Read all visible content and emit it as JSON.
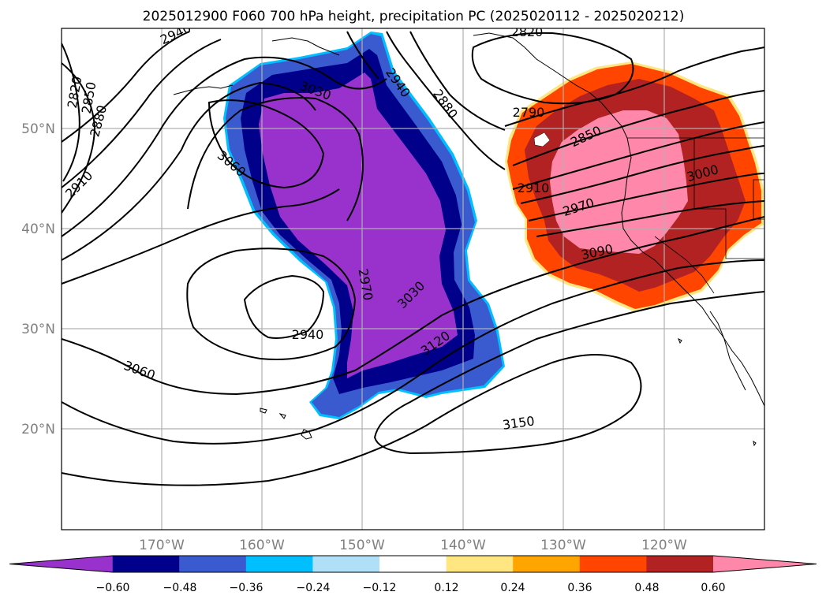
{
  "title": "2025012900 F060 700 hPa height, precipitation PC (2025020112 - 2025020212)",
  "lat_labels": [
    "50°N",
    "40°N",
    "30°N",
    "20°N"
  ],
  "lon_labels": [
    "170°W",
    "160°W",
    "150°W",
    "140°W",
    "130°W",
    "120°W"
  ],
  "colorbar": {
    "colors": [
      "#9932cc",
      "#00008b",
      "#3a5bd0",
      "#00bfff",
      "#b0e0f8",
      "#ffffff",
      "#ffe680",
      "#ffa500",
      "#ff4500",
      "#b22222",
      "#ff88aa"
    ],
    "ticks": [
      "−0.60",
      "−0.48",
      "−0.36",
      "−0.24",
      "−0.12",
      "0.12",
      "0.24",
      "0.36",
      "0.48",
      "0.60"
    ]
  },
  "contour_labels": [
    "2940",
    "2820",
    "2850",
    "2880",
    "3030",
    "2940",
    "2880",
    "2820",
    "2790",
    "2850",
    "3060",
    "2910",
    "2910",
    "2970",
    "3000",
    "3090",
    "2970",
    "3030",
    "2940",
    "3120",
    "3060",
    "3150"
  ]
}
